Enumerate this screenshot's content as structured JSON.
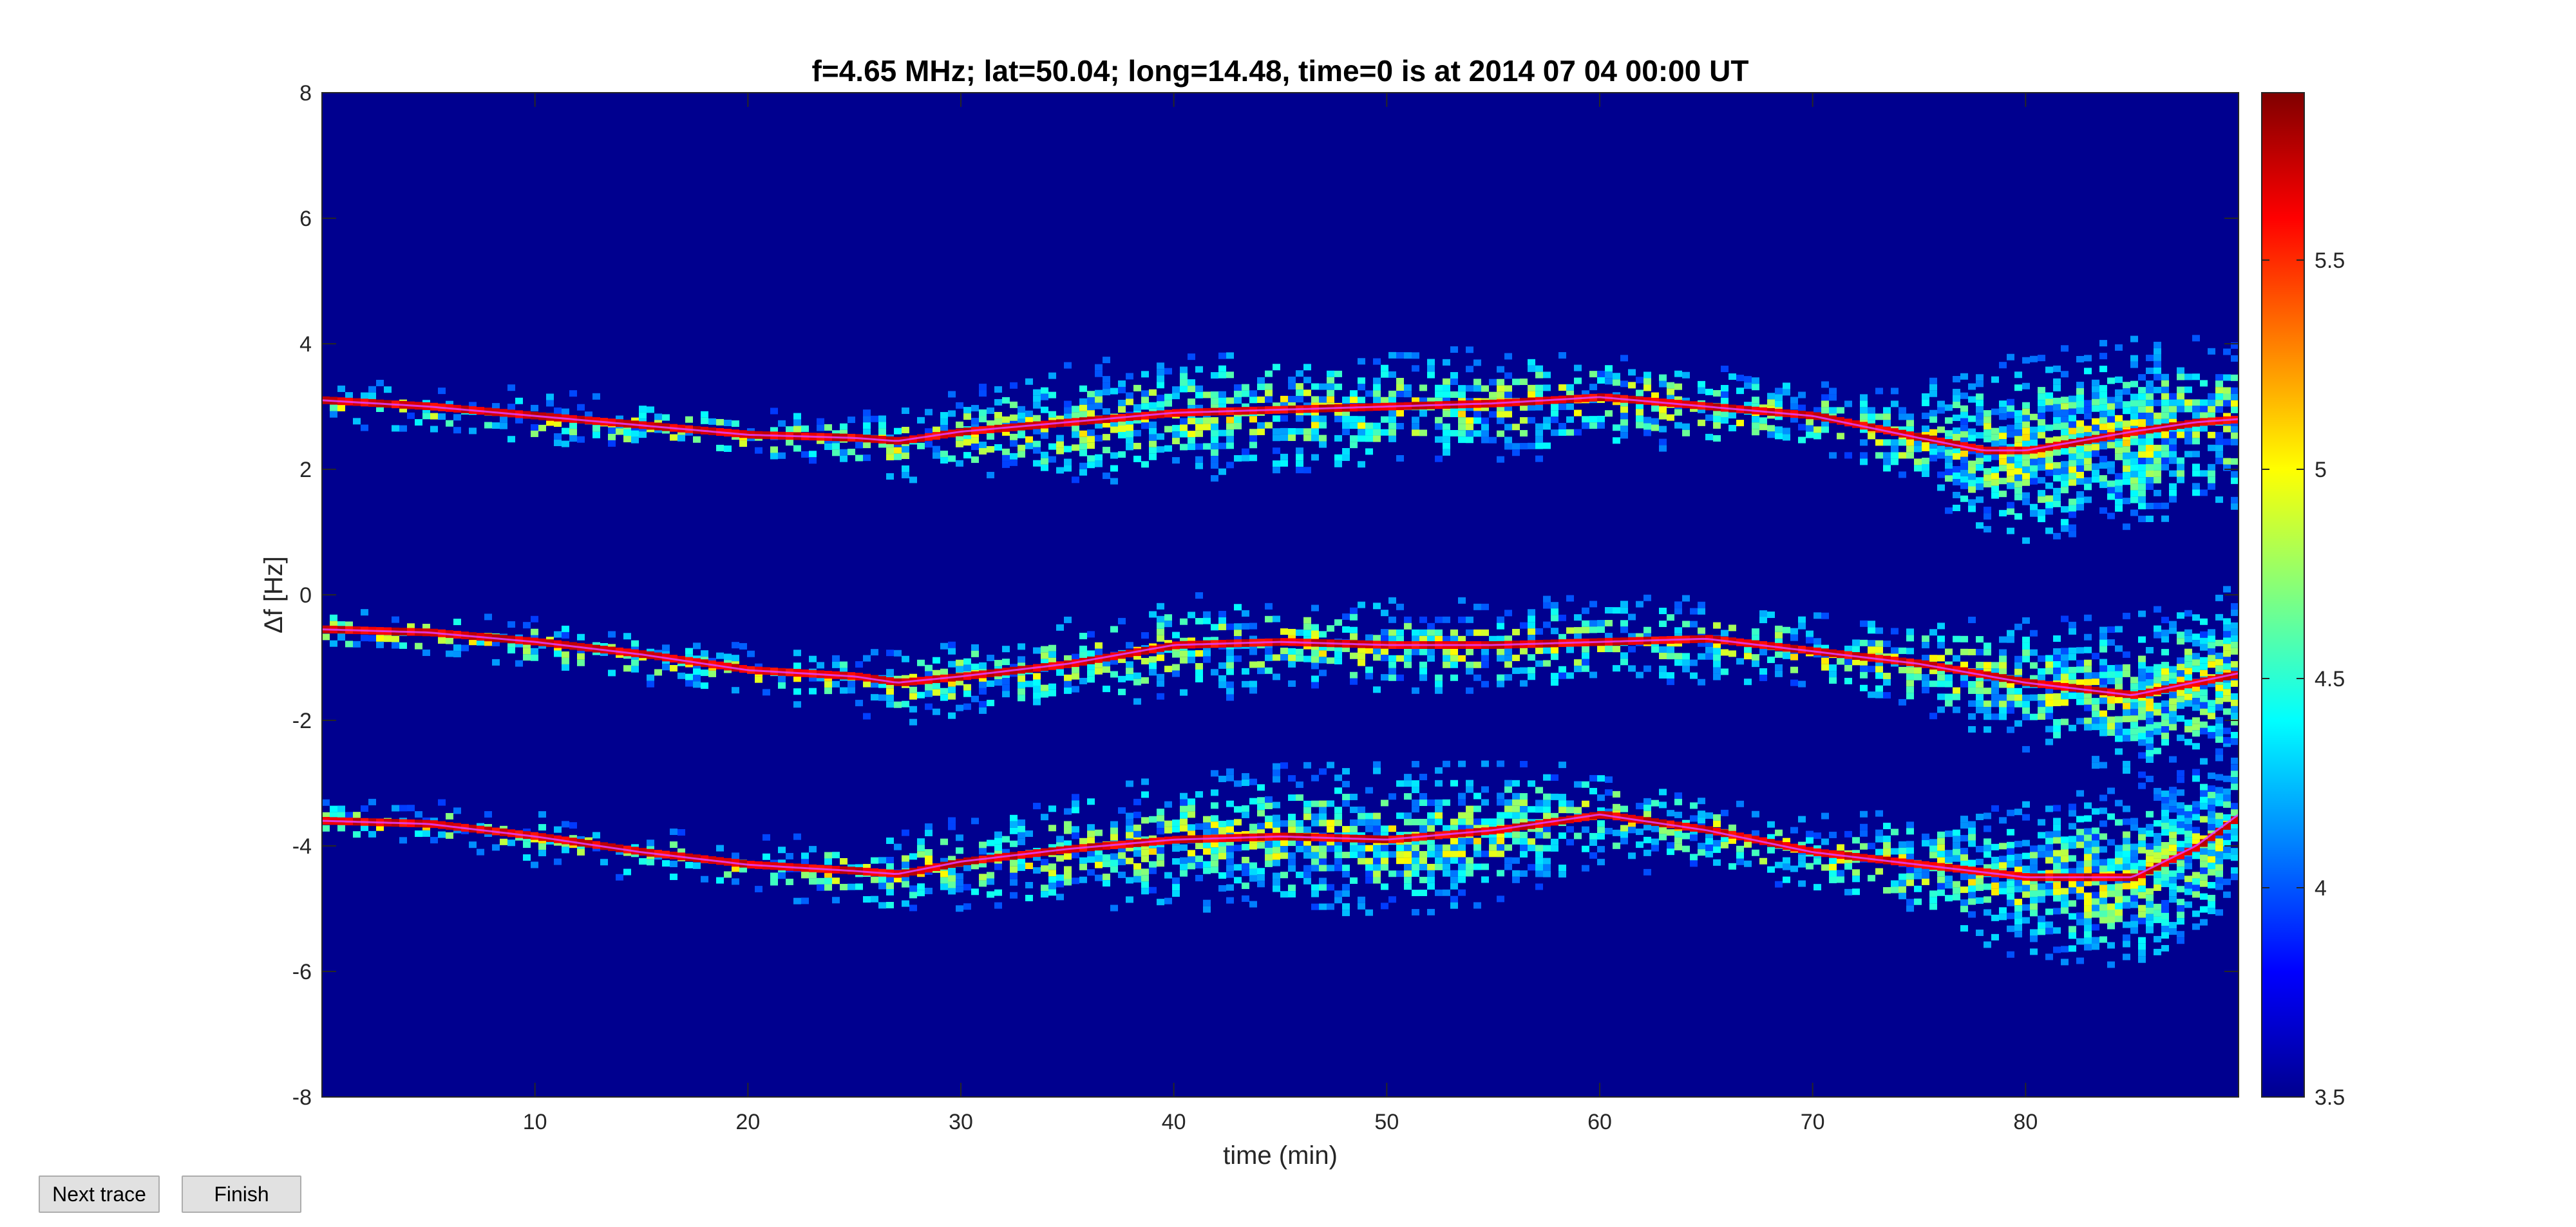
{
  "chart_data": {
    "type": "heatmap",
    "title": "f=4.65 MHz;  lat=50.04; long=14.48, time=0 is at 2014 07 04 00:00 UT",
    "xlabel": "time (min)",
    "ylabel": "Δf [Hz]",
    "xlim": [
      0,
      90
    ],
    "ylim": [
      -8,
      8
    ],
    "x_ticks": [
      10,
      20,
      30,
      40,
      50,
      60,
      70,
      80
    ],
    "y_ticks": [
      8,
      6,
      4,
      2,
      0,
      -2,
      -4,
      -6,
      -8
    ],
    "colorbar": {
      "colormap": "jet",
      "range": [
        3.5,
        5.9
      ],
      "ticks": [
        5.5,
        5,
        4.5,
        4,
        3.5
      ]
    },
    "background_color": "#00008f",
    "traces": [
      {
        "x": [
          0,
          5,
          10,
          15,
          20,
          25,
          27,
          30,
          35,
          40,
          45,
          50,
          55,
          60,
          65,
          70,
          75,
          78,
          80,
          85,
          88,
          90
        ],
        "y": [
          3.1,
          3.0,
          2.85,
          2.7,
          2.55,
          2.5,
          2.45,
          2.6,
          2.75,
          2.9,
          2.95,
          3.0,
          3.05,
          3.15,
          3.0,
          2.85,
          2.5,
          2.3,
          2.3,
          2.6,
          2.75,
          2.8
        ],
        "spread": [
          0.1,
          0.15,
          0.2,
          0.15,
          0.15,
          0.25,
          0.3,
          0.35,
          0.55,
          0.6,
          0.6,
          0.55,
          0.5,
          0.45,
          0.35,
          0.25,
          0.5,
          0.9,
          1.0,
          0.95,
          0.85,
          0.8
        ]
      },
      {
        "x": [
          0,
          5,
          10,
          15,
          20,
          25,
          27,
          30,
          35,
          40,
          45,
          50,
          55,
          60,
          65,
          70,
          75,
          80,
          85,
          90
        ],
        "y": [
          -0.55,
          -0.6,
          -0.75,
          -0.95,
          -1.2,
          -1.3,
          -1.4,
          -1.3,
          -1.1,
          -0.8,
          -0.75,
          -0.8,
          -0.8,
          -0.75,
          -0.7,
          -0.9,
          -1.1,
          -1.4,
          -1.6,
          -1.25
        ],
        "spread": [
          0.1,
          0.1,
          0.15,
          0.15,
          0.15,
          0.25,
          0.3,
          0.35,
          0.4,
          0.45,
          0.45,
          0.4,
          0.4,
          0.4,
          0.35,
          0.3,
          0.4,
          0.6,
          0.8,
          0.9
        ]
      },
      {
        "x": [
          0,
          5,
          10,
          15,
          20,
          25,
          27,
          30,
          35,
          40,
          45,
          50,
          55,
          60,
          65,
          70,
          75,
          80,
          85,
          88,
          90
        ],
        "y": [
          -3.6,
          -3.65,
          -3.85,
          -4.1,
          -4.3,
          -4.4,
          -4.45,
          -4.25,
          -4.05,
          -3.9,
          -3.85,
          -3.9,
          -3.75,
          -3.5,
          -3.75,
          -4.1,
          -4.3,
          -4.5,
          -4.5,
          -4.0,
          -3.5
        ],
        "spread": [
          0.1,
          0.15,
          0.15,
          0.15,
          0.2,
          0.3,
          0.35,
          0.4,
          0.55,
          0.6,
          0.7,
          0.75,
          0.65,
          0.45,
          0.35,
          0.3,
          0.5,
          0.8,
          0.9,
          0.9,
          0.85
        ]
      }
    ]
  },
  "buttons": {
    "next_trace": "Next trace",
    "finish": "Finish"
  }
}
